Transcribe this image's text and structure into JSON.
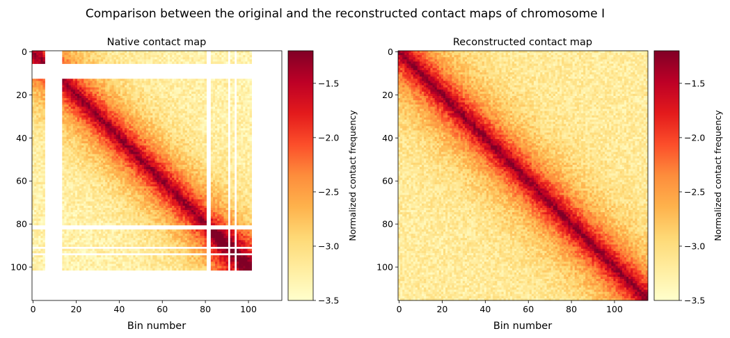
{
  "figure": {
    "title": "Comparison between the original and the reconstructed contact maps of chromosome I"
  },
  "colormap": {
    "name": "YlOrRd",
    "stops": [
      "#ffffcc",
      "#ffeda0",
      "#fed976",
      "#feb24c",
      "#fd8d3c",
      "#fc4e2a",
      "#e31a1c",
      "#bd0026",
      "#800026"
    ]
  },
  "chart_data": [
    {
      "type": "heatmap",
      "title": "Native contact map",
      "xlabel": "Bin number",
      "ylabel": "",
      "n_bins": 116,
      "xlim": [
        0,
        116
      ],
      "ylim": [
        116,
        0
      ],
      "xticks": [
        0,
        20,
        40,
        60,
        80,
        100
      ],
      "yticks": [
        0,
        20,
        40,
        60,
        80,
        100
      ],
      "colorbar": {
        "label": "Normalized contact frequency",
        "range": [
          -3.5,
          -1.2
        ],
        "ticks": [
          -3.5,
          -3.0,
          -2.5,
          -2.0,
          -1.5
        ]
      },
      "data_extent_bins": 102,
      "missing_bins": [
        6,
        7,
        8,
        9,
        10,
        11,
        12,
        13,
        81,
        82,
        91,
        94,
        102,
        103,
        104,
        105,
        106,
        107,
        108,
        109,
        110,
        111,
        112,
        113,
        114,
        115
      ],
      "missing_rows": [
        6,
        7,
        8,
        9,
        10,
        11,
        12,
        81,
        82,
        91,
        94
      ],
      "diagonal_value": -1.2,
      "background_value": -3.3
    },
    {
      "type": "heatmap",
      "title": "Reconstructed contact map",
      "xlabel": "Bin number",
      "ylabel": "",
      "n_bins": 116,
      "xlim": [
        0,
        116
      ],
      "ylim": [
        116,
        0
      ],
      "xticks": [
        0,
        20,
        40,
        60,
        80,
        100
      ],
      "yticks": [
        0,
        20,
        40,
        60,
        80,
        100
      ],
      "colorbar": {
        "label": "Normalized contact frequency",
        "range": [
          -3.5,
          -1.2
        ],
        "ticks": [
          -3.5,
          -3.0,
          -2.5,
          -2.0,
          -1.5
        ]
      },
      "missing_bins": [],
      "diagonal_value": -1.2,
      "background_value": -3.2
    }
  ]
}
